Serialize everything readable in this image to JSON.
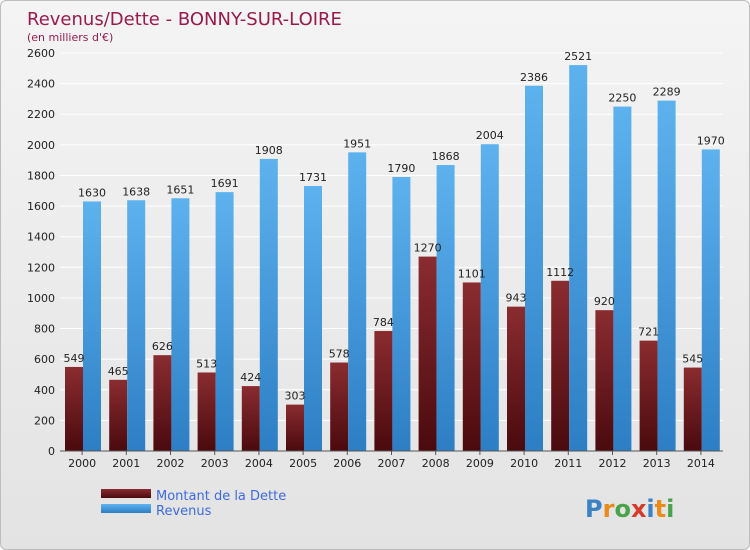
{
  "chart_data": {
    "type": "bar",
    "title": "Revenus/Dette - BONNY-SUR-LOIRE",
    "subtitle": "(en milliers d'€)",
    "categories": [
      "2000",
      "2001",
      "2002",
      "2003",
      "2004",
      "2005",
      "2006",
      "2007",
      "2008",
      "2009",
      "2010",
      "2011",
      "2012",
      "2013",
      "2014"
    ],
    "series": [
      {
        "name": "Montant de la Dette",
        "color": "#7d2226",
        "values": [
          549,
          465,
          626,
          513,
          424,
          303,
          578,
          784,
          1270,
          1101,
          943,
          1112,
          920,
          721,
          545
        ]
      },
      {
        "name": "Revenus",
        "color": "#4fa3e6",
        "values": [
          1630,
          1638,
          1651,
          1691,
          1908,
          1731,
          1951,
          1790,
          1868,
          2004,
          2386,
          2521,
          2250,
          2289,
          1970
        ]
      }
    ],
    "yticks": [
      0,
      200,
      400,
      600,
      800,
      1000,
      1200,
      1400,
      1600,
      1800,
      2000,
      2200,
      2400,
      2600
    ],
    "ylim": [
      0,
      2600
    ],
    "grid": true,
    "legend_position": "bottom-left"
  },
  "logo": {
    "text": "Proxiti"
  }
}
